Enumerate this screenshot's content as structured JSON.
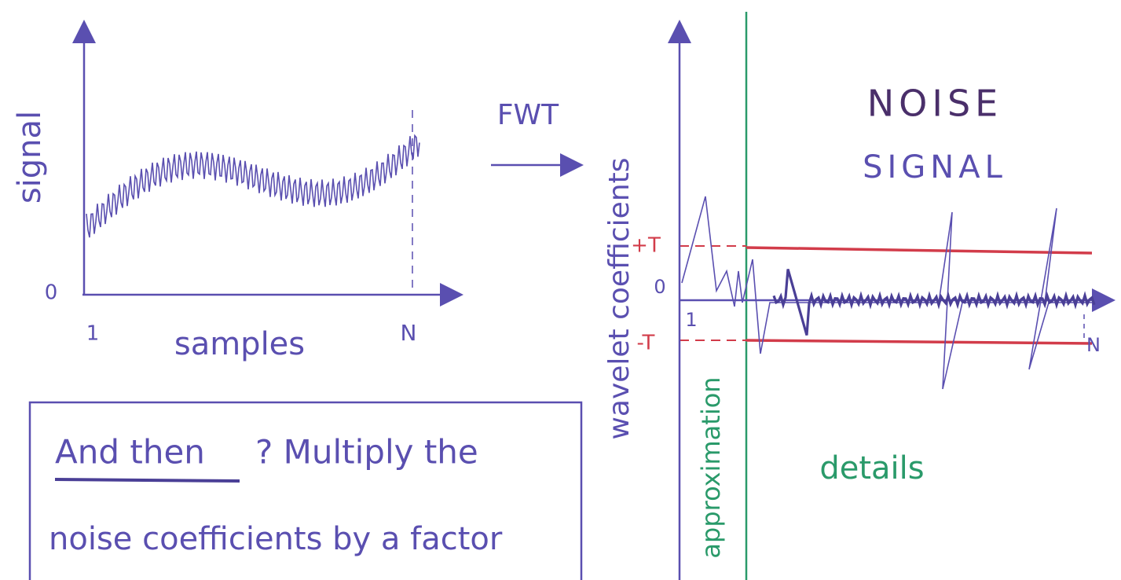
{
  "left_plot": {
    "y_label": "signal",
    "origin": "0",
    "x_start": "1",
    "x_label": "samples",
    "x_end": "N"
  },
  "transform": "FWT",
  "right_plot": {
    "y_label": "wavelet coefficients",
    "title": "NOISE",
    "subtitle": "SIGNAL",
    "upper_threshold": "+T",
    "origin": "0",
    "lower_threshold": "-T",
    "x_start": "1",
    "x_end": "N",
    "approximation_label": "approximation",
    "details_label": "details"
  },
  "note": {
    "emphasis": "And then",
    "line_1_rest": "? Multiply the",
    "line_2": "noise coefficients by a factor"
  }
}
